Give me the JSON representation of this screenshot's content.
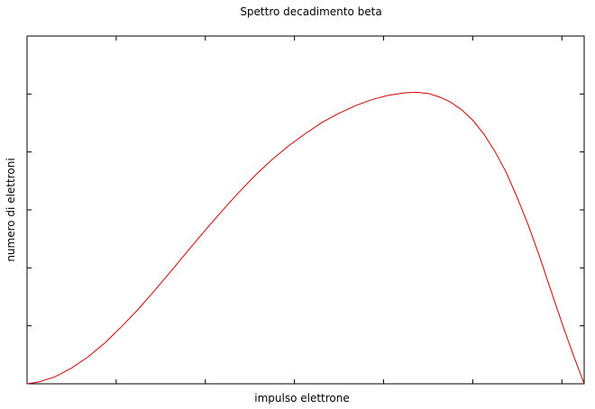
{
  "chart_data": {
    "type": "line",
    "title": "Spettro decadimento beta",
    "xlabel": "impulso elettrone",
    "ylabel": "numero di elettroni",
    "grid": false,
    "legend": "none",
    "x_ticks": 6,
    "y_ticks": 6,
    "xlim": [
      0,
      1
    ],
    "ylim": [
      0,
      1.0
    ],
    "series": [
      {
        "color": "#cc0000",
        "x": [
          0.0,
          0.02,
          0.05,
          0.08,
          0.11,
          0.14,
          0.17,
          0.2,
          0.23,
          0.26,
          0.29,
          0.32,
          0.35,
          0.38,
          0.41,
          0.44,
          0.47,
          0.5,
          0.53,
          0.56,
          0.59,
          0.62,
          0.65,
          0.68,
          0.7,
          0.72,
          0.74,
          0.76,
          0.78,
          0.8,
          0.82,
          0.84,
          0.86,
          0.88,
          0.9,
          0.92,
          0.94,
          0.96,
          0.98,
          1.0
        ],
        "values": [
          0.0,
          0.005,
          0.02,
          0.045,
          0.078,
          0.118,
          0.165,
          0.215,
          0.27,
          0.327,
          0.385,
          0.442,
          0.497,
          0.55,
          0.6,
          0.645,
          0.685,
          0.72,
          0.752,
          0.778,
          0.8,
          0.818,
          0.83,
          0.837,
          0.838,
          0.835,
          0.825,
          0.81,
          0.788,
          0.758,
          0.718,
          0.668,
          0.608,
          0.535,
          0.455,
          0.365,
          0.27,
          0.175,
          0.085,
          0.0
        ]
      }
    ]
  }
}
